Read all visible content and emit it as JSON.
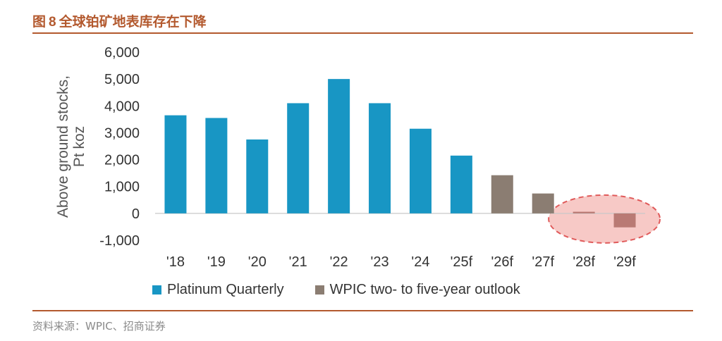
{
  "figure": {
    "label": "图",
    "number": "8",
    "title": "全球铂矿地表库存在下降",
    "source": "资料来源：WPIC、招商证券"
  },
  "chart_data": {
    "type": "bar",
    "ylabel_lines": [
      "Above ground stocks,",
      "Pt koz"
    ],
    "ylim": [
      -1000,
      6000
    ],
    "yticks": [
      6000,
      5000,
      4000,
      3000,
      2000,
      1000,
      0,
      -1000
    ],
    "ytick_labels": [
      "6,000",
      "5,000",
      "4,000",
      "3,000",
      "2,000",
      "1,000",
      "0",
      "-1,000"
    ],
    "categories": [
      "'18",
      "'19",
      "'20",
      "'21",
      "'22",
      "'23",
      "'24",
      "'25f",
      "'26f",
      "'27f",
      "'28f",
      "'29f"
    ],
    "values": [
      3650,
      3550,
      2750,
      4100,
      5000,
      4100,
      3150,
      2150,
      1420,
      740,
      60,
      -520
    ],
    "series": [
      {
        "name": "Platinum Quarterly",
        "color": "#1896c4",
        "indices": [
          0,
          1,
          2,
          3,
          4,
          5,
          6,
          7
        ]
      },
      {
        "name": "WPIC two- to five-year outlook",
        "color": "#8b7d72",
        "indices": [
          8,
          9,
          10,
          11
        ]
      }
    ],
    "highlight": {
      "indices": [
        10,
        11
      ],
      "fill": "#f7c9c6",
      "stroke": "#e05a5a",
      "bar_color": "#b97a74"
    },
    "grid": false,
    "legend": "bottom"
  }
}
